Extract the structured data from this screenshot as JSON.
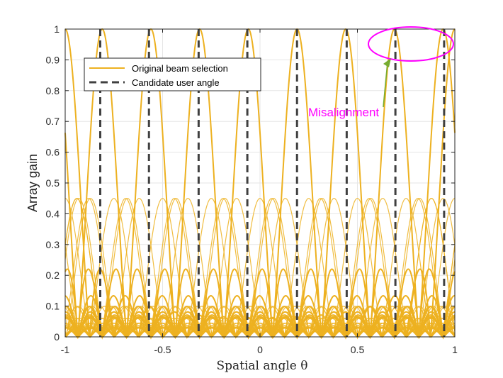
{
  "chart_data": {
    "type": "line",
    "xlabel": "Spatial angle θ",
    "ylabel": "Array gain",
    "xlim": [
      -1,
      1
    ],
    "ylim": [
      0,
      1
    ],
    "x_ticks": [
      "-1",
      "-0.5",
      "0",
      "0.5",
      "1"
    ],
    "y_ticks": [
      "0",
      "0.1",
      "0.2",
      "0.3",
      "0.4",
      "0.5",
      "0.6",
      "0.7",
      "0.8",
      "0.9",
      "1"
    ],
    "grid": true,
    "legend_position": "top-left",
    "array_size": 16,
    "series": [
      {
        "name": "Original beam selection",
        "color": "#EDB120",
        "style": "solid",
        "beam_peaks": [
          -0.81,
          -0.56,
          -0.31,
          -0.06,
          0.19,
          0.44,
          0.69,
          0.94,
          1.0
        ]
      },
      {
        "name": "Candidate user angle",
        "color": "#404040",
        "style": "dashed",
        "x": [
          -0.82,
          -0.57,
          -0.315,
          -0.065,
          0.19,
          0.445,
          0.695,
          0.945
        ]
      }
    ],
    "annotations": [
      {
        "text": "Misalignment",
        "color": "#FF00FF",
        "arrow_color": "#77AC30",
        "ellipse_center": [
          0.77,
          0.945
        ]
      }
    ]
  }
}
